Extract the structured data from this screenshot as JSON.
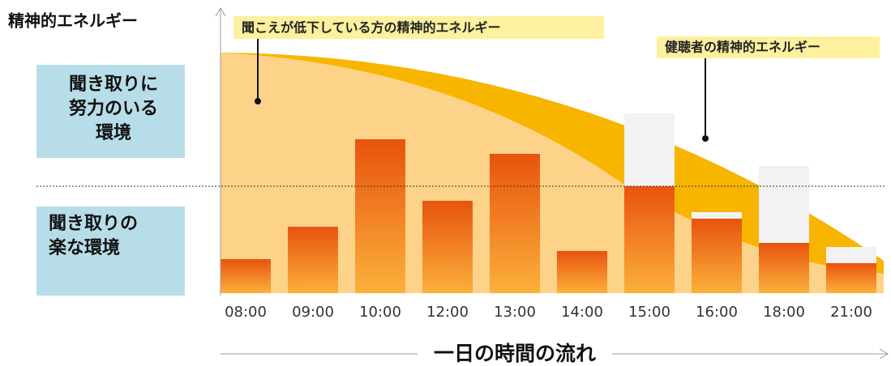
{
  "y_axis_label": "精神的エネルギー",
  "effort_zone": {
    "lines": [
      "聞き取りに",
      "努力のいる",
      "環境"
    ]
  },
  "easy_zone": {
    "lines": [
      "聞き取りの",
      "楽な環境"
    ]
  },
  "callouts": [
    "聞こえが低下している方の精神的エネルギー",
    "健聴者の精神的エネルギー"
  ],
  "times": [
    "08:00",
    "09:00",
    "10:00",
    "12:00",
    "13:00",
    "14:00",
    "15:00",
    "16:00",
    "18:00",
    "21:00"
  ],
  "x_axis_title": "一日の時間の流れ"
}
